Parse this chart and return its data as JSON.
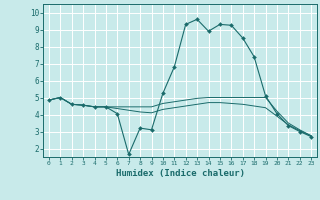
{
  "title": "",
  "xlabel": "Humidex (Indice chaleur)",
  "bg_color": "#c8eaea",
  "line_color": "#1a6b6b",
  "grid_color": "#ffffff",
  "xlim": [
    -0.5,
    23.5
  ],
  "ylim": [
    1.5,
    10.5
  ],
  "xticks": [
    0,
    1,
    2,
    3,
    4,
    5,
    6,
    7,
    8,
    9,
    10,
    11,
    12,
    13,
    14,
    15,
    16,
    17,
    18,
    19,
    20,
    21,
    22,
    23
  ],
  "yticks": [
    2,
    3,
    4,
    5,
    6,
    7,
    8,
    9,
    10
  ],
  "series": [
    {
      "x": [
        0,
        1,
        2,
        3,
        4,
        5,
        6,
        7,
        8,
        9,
        10,
        11,
        12,
        13,
        14,
        15,
        16,
        17,
        18,
        19,
        20,
        21,
        22,
        23
      ],
      "y": [
        4.85,
        5.0,
        4.6,
        4.55,
        4.45,
        4.45,
        4.05,
        1.65,
        3.2,
        3.1,
        5.25,
        6.8,
        9.3,
        9.6,
        8.9,
        9.3,
        9.25,
        8.5,
        7.4,
        5.1,
        4.05,
        3.35,
        3.0,
        2.7
      ],
      "has_markers": true
    },
    {
      "x": [
        0,
        1,
        2,
        3,
        4,
        5,
        6,
        7,
        8,
        9,
        10,
        11,
        12,
        13,
        14,
        15,
        16,
        17,
        18,
        19,
        20,
        21,
        22,
        23
      ],
      "y": [
        4.85,
        5.0,
        4.6,
        4.55,
        4.45,
        4.45,
        4.45,
        4.45,
        4.45,
        4.45,
        4.65,
        4.75,
        4.85,
        4.95,
        5.0,
        5.0,
        5.0,
        5.0,
        5.0,
        5.0,
        4.2,
        3.5,
        3.1,
        2.75
      ],
      "has_markers": false
    },
    {
      "x": [
        0,
        1,
        2,
        3,
        4,
        5,
        6,
        7,
        8,
        9,
        10,
        11,
        12,
        13,
        14,
        15,
        16,
        17,
        18,
        19,
        20,
        21,
        22,
        23
      ],
      "y": [
        4.85,
        5.0,
        4.6,
        4.55,
        4.45,
        4.45,
        4.35,
        4.25,
        4.15,
        4.1,
        4.3,
        4.4,
        4.5,
        4.6,
        4.7,
        4.7,
        4.65,
        4.6,
        4.5,
        4.4,
        3.9,
        3.4,
        3.05,
        2.75
      ],
      "has_markers": false
    }
  ]
}
